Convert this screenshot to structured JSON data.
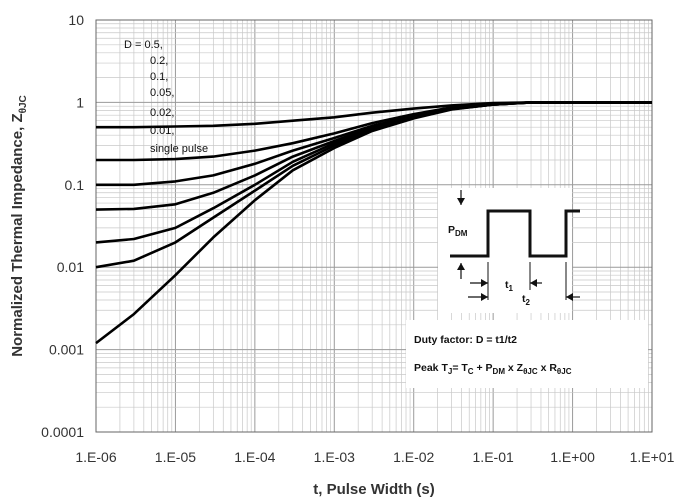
{
  "chart_data": {
    "type": "line",
    "title": "",
    "xlabel": "t, Pulse Width (s)",
    "ylabel": "Normalized Thermal Impedance, Z",
    "ylabel_sub": "θJC",
    "x_scale": "log",
    "y_scale": "log",
    "xlim": [
      1e-06,
      10
    ],
    "ylim": [
      0.0001,
      10
    ],
    "grid": true,
    "x_tick_labels": [
      "1.E-06",
      "1.E-05",
      "1.E-04",
      "1.E-03",
      "1.E-02",
      "1.E-01",
      "1.E+00",
      "1.E+01"
    ],
    "y_tick_labels": [
      "0.0001",
      "0.001",
      "0.01",
      "0.1",
      "1",
      "10"
    ],
    "legend_lines": [
      "D = 0.5,",
      "0.2,",
      "0.1,",
      "0.05,",
      "0.02,",
      "0.01,",
      "single pulse"
    ],
    "x": [
      1e-06,
      3e-06,
      1e-05,
      3e-05,
      0.0001,
      0.0003,
      0.001,
      0.003,
      0.01,
      0.03,
      0.1,
      0.3,
      1,
      10
    ],
    "series": [
      {
        "name": "0.5",
        "values": [
          0.5,
          0.5,
          0.51,
          0.52,
          0.55,
          0.6,
          0.66,
          0.75,
          0.84,
          0.92,
          0.98,
          1.0,
          1.0,
          1.0
        ]
      },
      {
        "name": "0.2",
        "values": [
          0.2,
          0.2,
          0.205,
          0.22,
          0.26,
          0.32,
          0.42,
          0.56,
          0.72,
          0.87,
          0.96,
          1.0,
          1.0,
          1.0
        ]
      },
      {
        "name": "0.1",
        "values": [
          0.1,
          0.1,
          0.11,
          0.13,
          0.18,
          0.26,
          0.37,
          0.52,
          0.69,
          0.85,
          0.95,
          1.0,
          1.0,
          1.0
        ]
      },
      {
        "name": "0.05",
        "values": [
          0.05,
          0.051,
          0.058,
          0.08,
          0.13,
          0.22,
          0.34,
          0.5,
          0.67,
          0.84,
          0.94,
          1.0,
          1.0,
          1.0
        ]
      },
      {
        "name": "0.02",
        "values": [
          0.02,
          0.022,
          0.03,
          0.052,
          0.1,
          0.19,
          0.32,
          0.48,
          0.66,
          0.83,
          0.94,
          1.0,
          1.0,
          1.0
        ]
      },
      {
        "name": "0.01",
        "values": [
          0.01,
          0.012,
          0.02,
          0.04,
          0.085,
          0.17,
          0.3,
          0.47,
          0.65,
          0.83,
          0.94,
          1.0,
          1.0,
          1.0
        ]
      },
      {
        "name": "single pulse",
        "values": [
          0.0012,
          0.0027,
          0.008,
          0.023,
          0.065,
          0.15,
          0.28,
          0.45,
          0.64,
          0.82,
          0.94,
          1.0,
          1.0,
          1.0
        ]
      }
    ]
  },
  "inset": {
    "pdm_label": "P",
    "pdm_sub": "DM",
    "t1_label": "t",
    "t1_sub": "1",
    "t2_label": "t",
    "t2_sub": "2",
    "duty_factor": "Duty factor: D = t1/t2",
    "peak_prefix": "Peak T",
    "peak_j_sub": "J",
    "peak_eq": "= T",
    "peak_c_sub": "C",
    "peak_plus": " + P",
    "peak_dm_sub": "DM",
    "peak_times_z": " x Z",
    "peak_thjc_sub": "θJC",
    "peak_times_r": " x R",
    "peak_thjc_sub2": "θJC"
  }
}
